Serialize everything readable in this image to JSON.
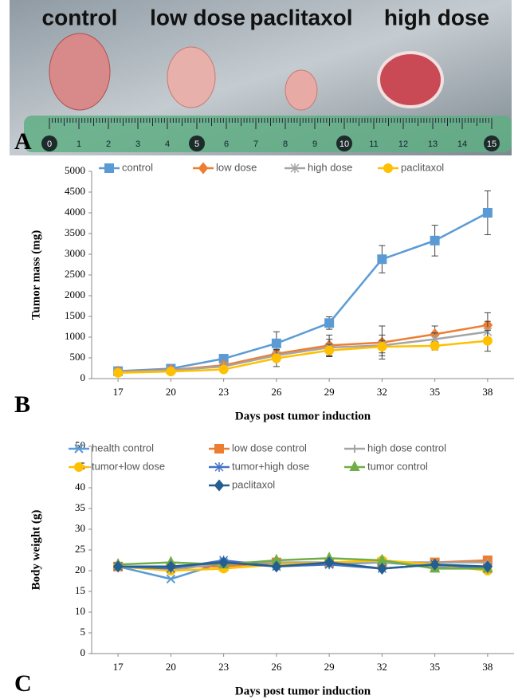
{
  "photo": {
    "labels": [
      "control",
      "low dose",
      "paclitaxol",
      "high dose"
    ],
    "ruler_labels": [
      0,
      1,
      2,
      3,
      4,
      5,
      6,
      7,
      8,
      9,
      10,
      11,
      12,
      13,
      14,
      15
    ]
  },
  "panel_labels": [
    "A",
    "B",
    "C"
  ],
  "chart_data": [
    {
      "type": "line",
      "ylabel": "Tumor mass (mg)",
      "xlabel": "Days post tumor induction",
      "categories": [
        "17",
        "20",
        "23",
        "26",
        "29",
        "32",
        "35",
        "38"
      ],
      "ylim": [
        0,
        5000
      ],
      "yticks": [
        0,
        500,
        1000,
        1500,
        2000,
        2500,
        3000,
        3500,
        4000,
        4500,
        5000
      ],
      "series": [
        {
          "name": "control",
          "color": "#5b9bd5",
          "marker": "square",
          "values": [
            180,
            240,
            480,
            850,
            1340,
            2880,
            3330,
            4000
          ],
          "errors": [
            30,
            30,
            40,
            280,
            150,
            330,
            370,
            530
          ]
        },
        {
          "name": "low dose",
          "color": "#ed7d31",
          "marker": "diamond",
          "values": [
            170,
            210,
            320,
            600,
            800,
            870,
            1070,
            1290
          ],
          "errors": [
            20,
            30,
            50,
            100,
            250,
            400,
            200,
            300
          ]
        },
        {
          "name": "high dose",
          "color": "#a5a5a5",
          "marker": "asterisk",
          "values": [
            160,
            200,
            290,
            560,
            750,
            800,
            950,
            1130
          ],
          "errors": [
            20,
            30,
            40,
            150,
            200,
            250,
            150,
            250
          ]
        },
        {
          "name": "paclitaxol",
          "color": "#ffc000",
          "marker": "circle",
          "values": [
            140,
            170,
            220,
            490,
            680,
            770,
            790,
            910
          ],
          "errors": [
            20,
            30,
            40,
            200,
            150,
            150,
            100,
            250
          ]
        }
      ]
    },
    {
      "type": "line",
      "ylabel": "Body weight (g)",
      "xlabel": "Days post tumor induction",
      "categories": [
        "17",
        "20",
        "23",
        "26",
        "29",
        "32",
        "35",
        "38"
      ],
      "ylim": [
        0,
        50
      ],
      "yticks": [
        0,
        5,
        10,
        15,
        20,
        25,
        30,
        35,
        40,
        45,
        50
      ],
      "series": [
        {
          "name": "health control",
          "color": "#5b9bd5",
          "marker": "x",
          "values": [
            21,
            18,
            22,
            21.5,
            21.5,
            22,
            21,
            20.5
          ]
        },
        {
          "name": "low dose control",
          "color": "#ed7d31",
          "marker": "square",
          "values": [
            21,
            21,
            21,
            22,
            22,
            22,
            22,
            22.5
          ]
        },
        {
          "name": "high dose control",
          "color": "#a5a5a5",
          "marker": "plus",
          "values": [
            21,
            20,
            22,
            22,
            22,
            22,
            22,
            22
          ]
        },
        {
          "name": "tumor+low dose",
          "color": "#ffc000",
          "marker": "circle",
          "values": [
            21,
            20,
            20.5,
            21.5,
            22,
            22.5,
            21.5,
            20
          ]
        },
        {
          "name": "tumor+high dose",
          "color": "#4472c4",
          "marker": "asterisk",
          "values": [
            21,
            20.5,
            22.5,
            21,
            21.5,
            20.5,
            21.5,
            20.5
          ]
        },
        {
          "name": "tumor control",
          "color": "#70ad47",
          "marker": "triangle",
          "values": [
            21.5,
            22,
            21.5,
            22.5,
            23,
            22.5,
            20.5,
            20.5
          ]
        },
        {
          "name": "paclitaxol",
          "color": "#255e91",
          "marker": "diamond",
          "values": [
            21,
            21,
            22,
            21,
            22,
            20.5,
            21.5,
            21
          ]
        }
      ]
    }
  ]
}
